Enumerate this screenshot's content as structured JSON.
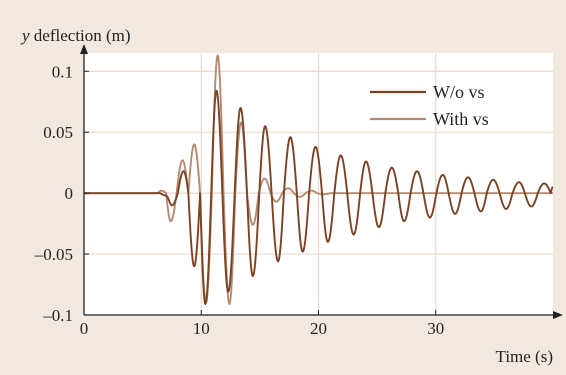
{
  "chart_data": {
    "type": "line",
    "title": "",
    "ylabel_italic": "y",
    "ylabel_rest": " deflection (m)",
    "xlabel": "Time (s)",
    "xlim": [
      0,
      40
    ],
    "ylim": [
      -0.1,
      0.115
    ],
    "x_ticks": [
      0,
      10,
      20,
      30
    ],
    "x_tick_labels": [
      "0",
      "10",
      "20",
      "30"
    ],
    "y_ticks": [
      -0.1,
      -0.05,
      0,
      0.05,
      0.1
    ],
    "y_tick_labels": [
      "–0.1",
      "–0.05",
      "0",
      "0.05",
      "0.1"
    ],
    "grid": true,
    "legend_position": "top-right",
    "colors": {
      "background": "#f1e9e0",
      "plot_background": "#ffffff",
      "grid": "#e7d9cc",
      "axis": "#222222",
      "without_vs": "#7a4323",
      "with_vs": "#b48a73"
    },
    "series": [
      {
        "name": "W/o vs",
        "color": "#7a4323",
        "x": [
          0,
          6.5,
          7.0,
          7.5,
          8.0,
          8.5,
          8.9,
          9.4,
          9.9,
          10.35,
          10.85,
          11.3,
          11.8,
          12.3,
          12.85,
          13.35,
          13.9,
          14.4,
          14.95,
          15.45,
          16.0,
          16.55,
          17.05,
          17.6,
          18.15,
          18.65,
          19.2,
          19.75,
          20.3,
          20.8,
          21.35,
          21.9,
          22.45,
          23.0,
          23.55,
          24.05,
          24.6,
          25.15,
          25.7,
          26.25,
          26.8,
          27.3,
          27.85,
          28.4,
          28.95,
          29.5,
          30.05,
          30.6,
          31.1,
          31.65,
          32.2,
          32.75,
          33.3,
          33.85,
          34.35,
          34.9,
          35.45,
          36.0,
          36.55,
          37.1,
          37.6,
          38.15,
          38.7,
          39.25,
          39.8,
          40.0
        ],
        "y": [
          0,
          0,
          -0.002,
          -0.01,
          0.0,
          0.018,
          0.0,
          -0.06,
          0.0,
          -0.091,
          0.0,
          0.084,
          0.0,
          -0.081,
          0.0,
          0.07,
          0.0,
          -0.068,
          0.0,
          0.055,
          0.0,
          -0.056,
          0.0,
          0.046,
          0.0,
          -0.048,
          0.0,
          0.038,
          0.0,
          -0.04,
          0.0,
          0.031,
          0.0,
          -0.034,
          0.0,
          0.026,
          0.0,
          -0.028,
          0.0,
          0.021,
          0.0,
          -0.023,
          0.0,
          0.018,
          0.0,
          -0.02,
          0.0,
          0.015,
          0.0,
          -0.017,
          0.0,
          0.013,
          0.0,
          -0.015,
          0.0,
          0.011,
          0.0,
          -0.013,
          0.0,
          0.009,
          0.0,
          -0.011,
          0.0,
          0.008,
          0.0,
          0.005
        ]
      },
      {
        "name": "With vs",
        "color": "#b48a73",
        "x": [
          0,
          6.3,
          6.6,
          7.0,
          7.4,
          7.9,
          8.4,
          8.9,
          9.4,
          9.9,
          10.4,
          10.9,
          11.4,
          11.9,
          12.4,
          12.9,
          13.4,
          13.9,
          14.4,
          14.9,
          15.4,
          15.9,
          16.4,
          16.9,
          17.4,
          17.9,
          18.4,
          18.9,
          19.4,
          19.9,
          20.4,
          21.0,
          22.0,
          40.0
        ],
        "y": [
          0,
          0,
          0.002,
          0.0,
          -0.023,
          0.0,
          0.027,
          0.0,
          0.04,
          0.0,
          -0.09,
          0.0,
          0.113,
          0.0,
          -0.091,
          0.0,
          0.058,
          0.0,
          -0.026,
          0.0,
          0.012,
          0.0,
          -0.007,
          0.0,
          0.004,
          0.0,
          -0.003,
          0.0,
          0.002,
          0.0,
          -0.001,
          0.0,
          0.0,
          0.0
        ]
      }
    ]
  }
}
